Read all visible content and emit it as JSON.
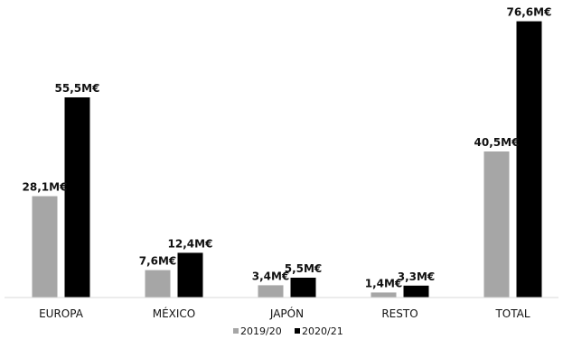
{
  "chart_data": {
    "type": "bar",
    "categories": [
      "EUROPA",
      "MÉXICO",
      "JAPÓN",
      "RESTO",
      "TOTAL"
    ],
    "series": [
      {
        "name": "2019/20",
        "color": "#a6a6a6",
        "values": [
          28.1,
          7.6,
          3.4,
          1.4,
          40.5
        ],
        "labels": [
          "28,1M€",
          "7,6M€",
          "3,4M€",
          "1,4M€",
          "40,5M€"
        ]
      },
      {
        "name": "2020/21",
        "color": "#000000",
        "values": [
          55.5,
          12.4,
          5.5,
          3.3,
          76.6
        ],
        "labels": [
          "55,5M€",
          "12,4M€",
          "5,5M€",
          "3,3M€",
          "76,6M€"
        ]
      }
    ],
    "title": "",
    "xlabel": "",
    "ylabel": "",
    "ylim": [
      0,
      80
    ],
    "grid": false,
    "legend": "bottom"
  }
}
